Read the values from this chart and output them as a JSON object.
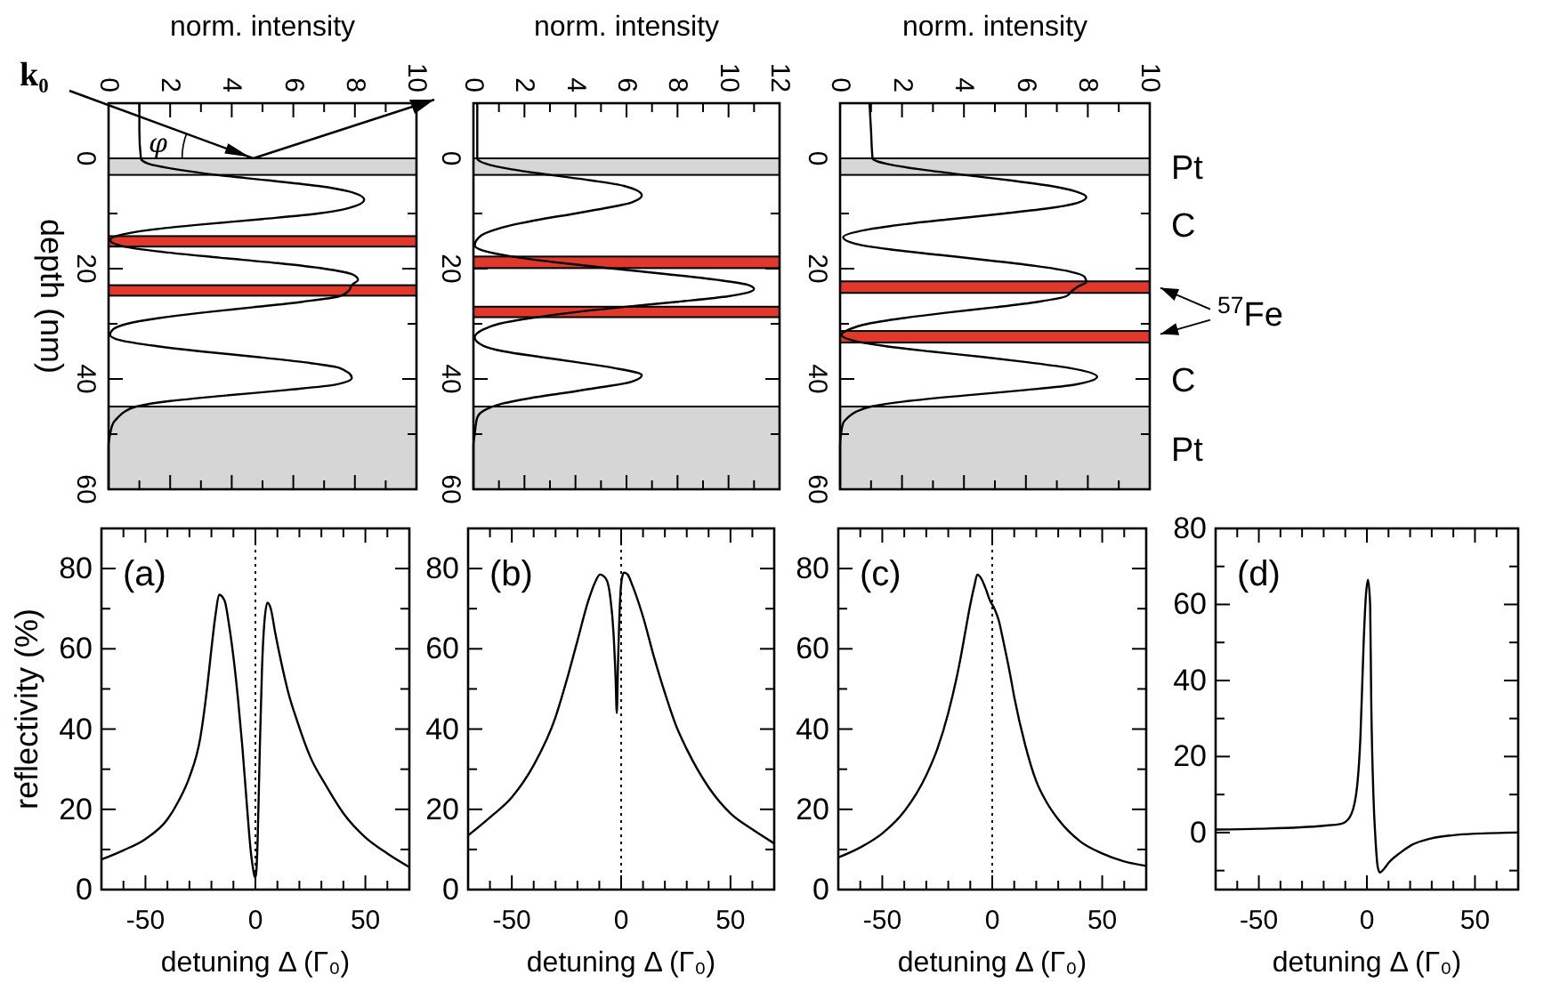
{
  "chart_data": [
    {
      "type": "line",
      "xlabel": "norm. intensity",
      "ylabel": "depth (nm)",
      "xlim": [
        0,
        10
      ],
      "ylim": [
        60,
        -10
      ],
      "xticks": [
        0,
        {
          "value": 1,
          "label": null
        },
        2,
        {
          "value": 3,
          "label": null
        },
        4,
        {
          "value": 5,
          "label": null
        },
        6,
        {
          "value": 7,
          "label": null
        },
        8,
        {
          "value": 9,
          "label": null
        },
        10
      ],
      "yticks": [
        0,
        {
          "value": 10,
          "label": null
        },
        20,
        {
          "value": 30,
          "label": null
        },
        40,
        {
          "value": 50,
          "label": null
        },
        60
      ],
      "bands": [
        {
          "axis": "y",
          "from": 0,
          "to": 3,
          "color": "#d6d6d6"
        },
        {
          "axis": "y",
          "from": 45,
          "to": 60,
          "color": "#d6d6d6"
        },
        {
          "axis": "y",
          "from": 14.1,
          "to": 16,
          "color": "#e0392b"
        },
        {
          "axis": "y",
          "from": 23,
          "to": 24.9,
          "color": "#e0392b"
        }
      ],
      "annotations": [
        "k₀",
        "φ"
      ],
      "series": [
        {
          "color": "#000000",
          "x": [
            1,
            1,
            1.05,
            1.3,
            2.2,
            3.5,
            5.2,
            6.8,
            7.8,
            8.3,
            7.8,
            6.8,
            5,
            3,
            1.3,
            0.3,
            0.05,
            0.5,
            1.8,
            3.6,
            5.5,
            7,
            7.9,
            8.1,
            7.9,
            7.8,
            7.5,
            6.3,
            4.7,
            3,
            1.6,
            0.6,
            0.15,
            0.05,
            0.4,
            1.5,
            3,
            4.8,
            6.4,
            7.5,
            7.9,
            7.4,
            5.8,
            3.8,
            2,
            0.9,
            0.5,
            0.3,
            0.15,
            0.05,
            0,
            0
          ],
          "values": [
            -10,
            -5,
            0,
            1,
            2,
            3,
            4,
            5,
            6,
            7.5,
            9,
            10,
            11,
            12,
            13,
            14,
            14.8,
            16,
            17,
            18,
            19,
            20,
            21,
            22,
            23,
            24,
            25,
            26,
            27,
            28,
            29,
            30,
            31,
            32,
            33,
            34,
            35,
            36,
            37,
            38,
            39.8,
            41,
            42,
            43,
            44,
            45,
            46,
            47,
            48,
            50,
            52,
            60
          ]
        }
      ]
    },
    {
      "type": "line",
      "xlabel": "norm. intensity",
      "xlim": [
        0,
        12
      ],
      "ylim": [
        60,
        -10
      ],
      "xticks": [
        0,
        {
          "value": 1,
          "label": null
        },
        2,
        {
          "value": 3,
          "label": null
        },
        4,
        {
          "value": 5,
          "label": null
        },
        6,
        {
          "value": 7,
          "label": null
        },
        8,
        {
          "value": 9,
          "label": null
        },
        10,
        {
          "value": 11,
          "label": null
        },
        12
      ],
      "yticks": [
        0,
        {
          "value": 10,
          "label": null
        },
        20,
        {
          "value": 30,
          "label": null
        },
        40,
        {
          "value": 50,
          "label": null
        },
        60
      ],
      "bands": [
        {
          "axis": "y",
          "from": 0,
          "to": 3,
          "color": "#d6d6d6"
        },
        {
          "axis": "y",
          "from": 45,
          "to": 60,
          "color": "#d6d6d6"
        },
        {
          "axis": "y",
          "from": 17.8,
          "to": 19.9,
          "color": "#e0392b"
        },
        {
          "axis": "y",
          "from": 26.9,
          "to": 28.8,
          "color": "#e0392b"
        }
      ],
      "series": [
        {
          "color": "#000000",
          "x": [
            0.15,
            0.15,
            0.5,
            1.5,
            3,
            4.6,
            5.9,
            6.6,
            6.2,
            5.2,
            4,
            2.7,
            1.6,
            0.8,
            0.3,
            0.05,
            0.6,
            1.8,
            3.5,
            5.5,
            7.6,
            9.5,
            10.8,
            11,
            10.6,
            10,
            8,
            5.8,
            3.8,
            2.2,
            1,
            0.4,
            0.05,
            0.4,
            1.2,
            2.6,
            4.1,
            5.5,
            6.6,
            6.2,
            5,
            3.6,
            2.2,
            1.1,
            0.5,
            0.15,
            0.05,
            0,
            0
          ],
          "values": [
            -10,
            0,
            1,
            2,
            3,
            4,
            5,
            6.7,
            8,
            9,
            10,
            11,
            12,
            13,
            14,
            15.8,
            17,
            18,
            19,
            20,
            21,
            22,
            23,
            23.7,
            24.5,
            25,
            26,
            27,
            28,
            29,
            30,
            31,
            32.5,
            34,
            35,
            36,
            37,
            38,
            39.3,
            40.5,
            41.5,
            42.5,
            43.5,
            44.5,
            45.5,
            47,
            50,
            52,
            60
          ]
        }
      ]
    },
    {
      "type": "line",
      "xlabel": "norm. intensity",
      "xlim": [
        0,
        10
      ],
      "ylim": [
        60,
        -10
      ],
      "xticks": [
        0,
        {
          "value": 1,
          "label": null
        },
        2,
        {
          "value": 3,
          "label": null
        },
        4,
        {
          "value": 5,
          "label": null
        },
        6,
        {
          "value": 7,
          "label": null
        },
        8,
        {
          "value": 9,
          "label": null
        },
        10
      ],
      "yticks": [
        0,
        {
          "value": 10,
          "label": null
        },
        20,
        {
          "value": 30,
          "label": null
        },
        40,
        {
          "value": 50,
          "label": null
        },
        60
      ],
      "bands": [
        {
          "axis": "y",
          "from": 0,
          "to": 3,
          "color": "#d6d6d6",
          "label": "Pt"
        },
        {
          "axis": "y",
          "from": 45,
          "to": 60,
          "color": "#d6d6d6",
          "label": "Pt"
        },
        {
          "axis": "y",
          "from": 22.3,
          "to": 24.4,
          "color": "#e0392b"
        },
        {
          "axis": "y",
          "from": 31.3,
          "to": 33.4,
          "color": "#e0392b"
        }
      ],
      "annotations": [
        "C",
        "$^{57}$Fe",
        "C"
      ],
      "series": [
        {
          "color": "#000000",
          "x": [
            0.95,
            1,
            1.05,
            1.5,
            2.6,
            4,
            5.5,
            6.8,
            7.6,
            7.95,
            7.7,
            6.8,
            5.3,
            3.6,
            2,
            0.8,
            0.1,
            0.5,
            1.6,
            3.2,
            4.8,
            6.3,
            7.4,
            7.9,
            7.95,
            7.7,
            7.5,
            7.3,
            6.4,
            5,
            3.4,
            2,
            0.9,
            0.3,
            0.05,
            0.4,
            1.4,
            2.9,
            4.6,
            6.1,
            7.4,
            8.3,
            7.6,
            6,
            4,
            2.2,
            1,
            0.5,
            0.25,
            0.1,
            0.03,
            0,
            0
          ],
          "values": [
            -10,
            -5,
            0,
            1,
            2,
            3,
            4,
            5,
            6,
            7,
            8,
            9,
            10,
            11,
            12,
            13,
            14.3,
            15.5,
            16.5,
            17.5,
            18.5,
            19.5,
            20.5,
            21.5,
            22.4,
            23.2,
            24,
            25,
            26,
            27,
            28,
            29,
            30,
            31,
            32,
            33,
            34,
            35,
            36,
            37,
            38,
            39.6,
            41,
            42,
            43,
            44,
            45,
            46,
            47,
            48,
            50,
            52,
            60
          ]
        }
      ]
    },
    {
      "type": "line",
      "xlabel": "detuning Δ (Γ₀)",
      "ylabel": "reflectivity (%)",
      "xlim": [
        -70,
        70
      ],
      "ylim": [
        0,
        90
      ],
      "xticks": [
        {
          "value": -60,
          "label": null
        },
        -50,
        {
          "value": -40,
          "label": null
        },
        {
          "value": -30,
          "label": null
        },
        {
          "value": -20,
          "label": null
        },
        {
          "value": -10,
          "label": null
        },
        0,
        {
          "value": 10,
          "label": null
        },
        {
          "value": 20,
          "label": null
        },
        {
          "value": 30,
          "label": null
        },
        {
          "value": 40,
          "label": null
        },
        50,
        {
          "value": 60,
          "label": null
        }
      ],
      "yticks": [
        0,
        {
          "value": 10,
          "label": null
        },
        20,
        {
          "value": 30,
          "label": null
        },
        40,
        {
          "value": 50,
          "label": null
        },
        60,
        {
          "value": 70,
          "label": null
        },
        80
      ],
      "ref_lines": [
        {
          "axis": "x",
          "value": 0,
          "line_style": "dotted"
        }
      ],
      "annotations": [
        "(a)"
      ],
      "series": [
        {
          "color": "#000000",
          "x": [
            -70,
            -60,
            -50,
            -40,
            -35,
            -30,
            -25,
            -22,
            -20,
            -18,
            -16.5,
            -14,
            -12,
            -10,
            -8,
            -6,
            -4,
            -2,
            -1,
            -0.5,
            0,
            0.5,
            1,
            2,
            3,
            4,
            5.5,
            7,
            9,
            12,
            15,
            19,
            25,
            32,
            40,
            50,
            60,
            70
          ],
          "values": [
            7.5,
            9.8,
            12.6,
            17.5,
            22,
            28,
            38,
            50,
            60,
            69,
            73.5,
            72,
            66,
            58,
            48,
            36,
            22,
            9,
            5,
            3.5,
            3,
            5,
            12,
            35,
            55,
            66,
            71.5,
            70,
            64,
            56,
            49,
            42,
            33,
            26,
            19,
            13,
            9,
            5.6
          ]
        }
      ]
    },
    {
      "type": "line",
      "xlabel": "detuning Δ (Γ₀)",
      "xlim": [
        -70,
        70
      ],
      "ylim": [
        0,
        90
      ],
      "xticks": [
        {
          "value": -60,
          "label": null
        },
        -50,
        {
          "value": -40,
          "label": null
        },
        {
          "value": -30,
          "label": null
        },
        {
          "value": -20,
          "label": null
        },
        {
          "value": -10,
          "label": null
        },
        0,
        {
          "value": 10,
          "label": null
        },
        {
          "value": 20,
          "label": null
        },
        {
          "value": 30,
          "label": null
        },
        {
          "value": 40,
          "label": null
        },
        50,
        {
          "value": 60,
          "label": null
        }
      ],
      "yticks": [
        0,
        {
          "value": 10,
          "label": null
        },
        20,
        {
          "value": 30,
          "label": null
        },
        40,
        {
          "value": 50,
          "label": null
        },
        60,
        {
          "value": 70,
          "label": null
        },
        80
      ],
      "ref_lines": [
        {
          "axis": "x",
          "value": 0,
          "line_style": "dotted"
        }
      ],
      "annotations": [
        "(b)"
      ],
      "series": [
        {
          "color": "#000000",
          "x": [
            -70,
            -60,
            -50,
            -40,
            -30,
            -25,
            -20,
            -15,
            -12,
            -9.7,
            -7,
            -5,
            -3.5,
            -2.5,
            -2,
            -1.5,
            -0.5,
            0.5,
            1.4,
            3,
            5,
            10,
            15,
            20,
            25,
            30,
            40,
            50,
            60,
            70
          ],
          "values": [
            13.5,
            18,
            23,
            31,
            43,
            52,
            62,
            72,
            76.5,
            78.5,
            77.5,
            73,
            64,
            52,
            44,
            55,
            72,
            78,
            79,
            78.5,
            76,
            68,
            58,
            49,
            41,
            35,
            25.5,
            19,
            15,
            11.5
          ]
        }
      ]
    },
    {
      "type": "line",
      "xlabel": "detuning Δ (Γ₀)",
      "xlim": [
        -70,
        70
      ],
      "ylim": [
        0,
        90
      ],
      "xticks": [
        {
          "value": -60,
          "label": null
        },
        -50,
        {
          "value": -40,
          "label": null
        },
        {
          "value": -30,
          "label": null
        },
        {
          "value": -20,
          "label": null
        },
        {
          "value": -10,
          "label": null
        },
        0,
        {
          "value": 10,
          "label": null
        },
        {
          "value": 20,
          "label": null
        },
        {
          "value": 30,
          "label": null
        },
        {
          "value": 40,
          "label": null
        },
        50,
        {
          "value": 60,
          "label": null
        }
      ],
      "yticks": [
        0,
        {
          "value": 10,
          "label": null
        },
        20,
        {
          "value": 30,
          "label": null
        },
        40,
        {
          "value": 50,
          "label": null
        },
        60,
        {
          "value": 70,
          "label": null
        },
        80
      ],
      "ref_lines": [
        {
          "axis": "x",
          "value": 0,
          "line_style": "dotted"
        }
      ],
      "annotations": [
        "(c)"
      ],
      "series": [
        {
          "color": "#000000",
          "x": [
            -70,
            -60,
            -50,
            -40,
            -30,
            -25,
            -20,
            -15,
            -12,
            -10,
            -8,
            -6.8,
            -5,
            -3,
            -1,
            1,
            3,
            5,
            8,
            10,
            15,
            20,
            25,
            30,
            40,
            50,
            60,
            70
          ],
          "values": [
            8,
            10.5,
            14,
            19.5,
            28.5,
            35,
            44,
            56,
            65,
            71,
            76,
            78.5,
            77.5,
            75,
            72,
            70,
            67,
            62,
            54,
            48,
            36,
            27,
            21.5,
            17.5,
            12,
            9,
            7,
            5.9
          ]
        }
      ]
    },
    {
      "type": "line",
      "xlabel": "detuning Δ (Γ₀)",
      "xlim": [
        -70,
        70
      ],
      "ylim": [
        -15,
        80
      ],
      "xticks": [
        {
          "value": -60,
          "label": null
        },
        -50,
        {
          "value": -40,
          "label": null
        },
        {
          "value": -30,
          "label": null
        },
        {
          "value": -20,
          "label": null
        },
        {
          "value": -10,
          "label": null
        },
        0,
        {
          "value": 10,
          "label": null
        },
        {
          "value": 20,
          "label": null
        },
        {
          "value": 30,
          "label": null
        },
        {
          "value": 40,
          "label": null
        },
        50,
        {
          "value": 60,
          "label": null
        }
      ],
      "yticks": [
        {
          "value": -10,
          "label": null
        },
        0,
        {
          "value": 10,
          "label": null
        },
        20,
        {
          "value": 30,
          "label": null
        },
        40,
        {
          "value": 50,
          "label": null
        },
        60,
        {
          "value": 70,
          "label": null
        },
        80
      ],
      "annotations": [
        "(d)"
      ],
      "series": [
        {
          "color": "#000000",
          "x": [
            -70,
            -50,
            -20,
            -12,
            -8,
            -5,
            -3,
            -1.5,
            -0.5,
            0.5,
            1.5,
            2,
            3,
            4,
            5,
            6,
            8,
            10,
            15,
            20,
            30,
            40,
            50,
            70
          ],
          "values": [
            0.8,
            1,
            1.8,
            2.3,
            4,
            10,
            25,
            50,
            62,
            66.5,
            60,
            35,
            10,
            -2,
            -9,
            -10.5,
            -9.5,
            -8,
            -5.5,
            -3.5,
            -1.5,
            -0.7,
            -0.3,
            0
          ]
        }
      ]
    }
  ]
}
